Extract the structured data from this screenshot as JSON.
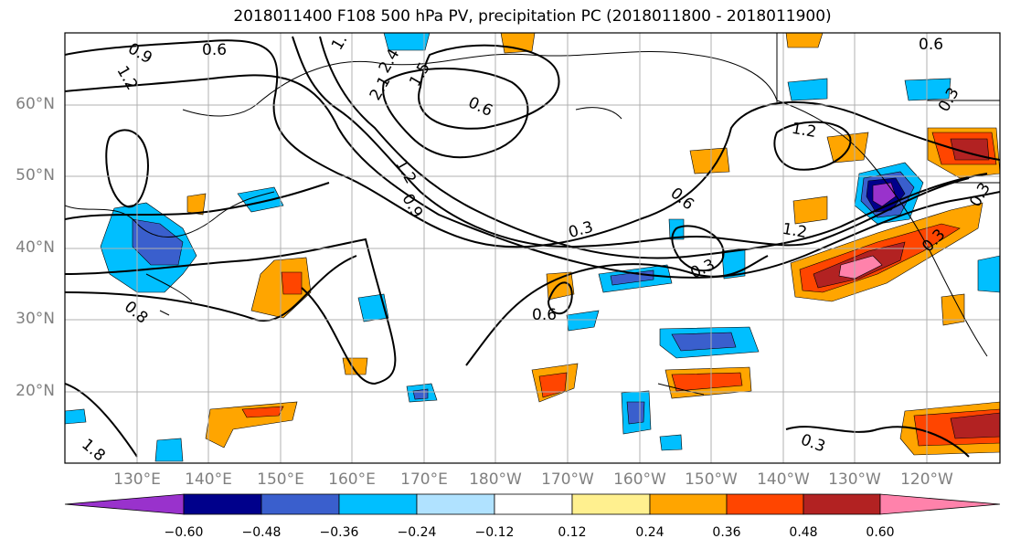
{
  "title": "2018011400 F108 500 hPa PV, precipitation PC (2018011800 - 2018011900)",
  "lat_labels": [
    "60°N",
    "50°N",
    "40°N",
    "30°N",
    "20°N"
  ],
  "lon_labels": [
    "130°E",
    "140°E",
    "150°E",
    "160°E",
    "170°E",
    "180°W",
    "170°W",
    "160°W",
    "150°W",
    "140°W",
    "130°W",
    "120°W"
  ],
  "colorbar": {
    "ticks": [
      "−0.60",
      "−0.48",
      "−0.36",
      "−0.24",
      "−0.12",
      "0.12",
      "0.24",
      "0.36",
      "0.48",
      "0.60"
    ],
    "colors": [
      "#9932cc",
      "#00008b",
      "#3a5fcd",
      "#00bfff",
      "#b0e2ff",
      "#ffffff",
      "#fff08f",
      "#ffa500",
      "#ff4500",
      "#b22222",
      "#ff82ab"
    ]
  },
  "contour_labels": [
    {
      "text": "0.9"
    },
    {
      "text": "0.6"
    },
    {
      "text": "1.2"
    },
    {
      "text": "1."
    },
    {
      "text": "2.4"
    },
    {
      "text": "2.1"
    },
    {
      "text": "1.5"
    },
    {
      "text": "0.6"
    },
    {
      "text": "1.2"
    },
    {
      "text": "0.9"
    },
    {
      "text": "0.3"
    },
    {
      "text": "0.6"
    },
    {
      "text": "0.3"
    },
    {
      "text": "1.2"
    },
    {
      "text": "1.2"
    },
    {
      "text": "0.3"
    },
    {
      "text": "0.3"
    },
    {
      "text": "0.6"
    },
    {
      "text": "0.6"
    },
    {
      "text": "0.3"
    },
    {
      "text": "0.3"
    },
    {
      "text": "0.8"
    },
    {
      "text": "1.8"
    }
  ]
}
